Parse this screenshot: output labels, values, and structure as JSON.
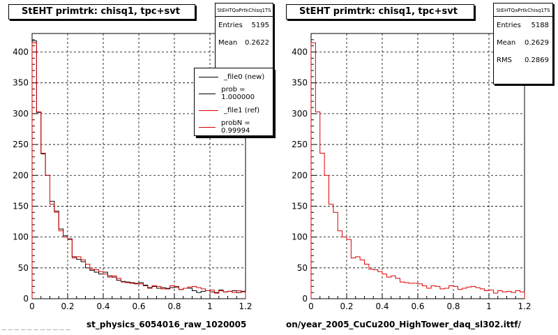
{
  "panels": [
    {
      "id": "left",
      "title": "StEHT primtrk: chisq1, tpc+svt",
      "stats": {
        "name": "StEHTQaPrtkChisq1TS",
        "rows": [
          {
            "label": "Entries",
            "value": "5195"
          },
          {
            "label": "Mean",
            "value": "0.2622"
          }
        ]
      },
      "legend": [
        {
          "label": "_file0 (new)",
          "color": "#000000"
        },
        {
          "label": "prob = 1.000000",
          "color": "#000000"
        },
        {
          "label": "_file1 (ref)",
          "color": "#dd0000"
        },
        {
          "label": "probN = 0.99994",
          "color": "#dd0000"
        }
      ],
      "bottom_label": "st_physics_6054016_raw_1020005"
    },
    {
      "id": "right",
      "title": "StEHT primtrk: chisq1, tpc+svt",
      "stats": {
        "name": "StEHTQaPrtkChisq1TS",
        "rows": [
          {
            "label": "Entries",
            "value": "5188"
          },
          {
            "label": "Mean",
            "value": "0.2629"
          },
          {
            "label": "RMS",
            "value": "0.2869"
          }
        ]
      },
      "legend": [],
      "bottom_label": "on/year_2005_CuCu200_HighTower_daq_sl302.ittf/"
    }
  ],
  "footer": "— — — — — — — — — — —",
  "chart_data": [
    {
      "type": "histogram",
      "title": "StEHT primtrk: chisq1, tpc+svt",
      "xlabel": "",
      "ylabel": "",
      "xlim": [
        0,
        1.2
      ],
      "ylim": [
        0,
        430
      ],
      "grid": true,
      "xticks": [
        "0",
        "0.2",
        "0.4",
        "0.6",
        "0.8",
        "1",
        "1.2"
      ],
      "yticks": [
        "0",
        "50",
        "100",
        "150",
        "200",
        "250",
        "300",
        "350",
        "400"
      ],
      "bin_width": 0.025,
      "series": [
        {
          "name": "_file0 (new)",
          "color": "#000000",
          "values": [
            418,
            302,
            235,
            200,
            158,
            142,
            113,
            102,
            97,
            68,
            64,
            60,
            50,
            46,
            43,
            40,
            43,
            37,
            35,
            30,
            28,
            27,
            26,
            24,
            26,
            22,
            18,
            20,
            17,
            18,
            16,
            18,
            19,
            15,
            17,
            17,
            13,
            10,
            12,
            13,
            11,
            10,
            14,
            11,
            12,
            13,
            10,
            12
          ]
        },
        {
          "name": "_file1 (ref)",
          "color": "#dd0000",
          "values": [
            415,
            303,
            236,
            200,
            153,
            140,
            110,
            100,
            96,
            66,
            68,
            63,
            56,
            48,
            47,
            44,
            40,
            35,
            37,
            33,
            27,
            26,
            25,
            25,
            24,
            21,
            17,
            21,
            20,
            16,
            17,
            21,
            20,
            15,
            17,
            19,
            20,
            18,
            16,
            13,
            14,
            9,
            13,
            11,
            12,
            10,
            13,
            11
          ]
        }
      ]
    },
    {
      "type": "histogram",
      "title": "StEHT primtrk: chisq1, tpc+svt",
      "xlabel": "",
      "ylabel": "",
      "xlim": [
        0,
        1.2
      ],
      "ylim": [
        0,
        430
      ],
      "grid": true,
      "xticks": [
        "0",
        "0.2",
        "0.4",
        "0.6",
        "0.8",
        "1",
        "1.2"
      ],
      "yticks": [
        "0",
        "50",
        "100",
        "150",
        "200",
        "250",
        "300",
        "350",
        "400"
      ],
      "bin_width": 0.025,
      "series": [
        {
          "name": "",
          "color": "#dd0000",
          "values": [
            415,
            303,
            236,
            200,
            153,
            140,
            110,
            100,
            96,
            66,
            68,
            63,
            56,
            48,
            47,
            44,
            40,
            35,
            37,
            33,
            27,
            26,
            25,
            25,
            24,
            21,
            17,
            21,
            20,
            16,
            17,
            21,
            20,
            15,
            17,
            19,
            20,
            18,
            16,
            13,
            14,
            9,
            13,
            11,
            12,
            10,
            13,
            11
          ]
        }
      ]
    }
  ]
}
